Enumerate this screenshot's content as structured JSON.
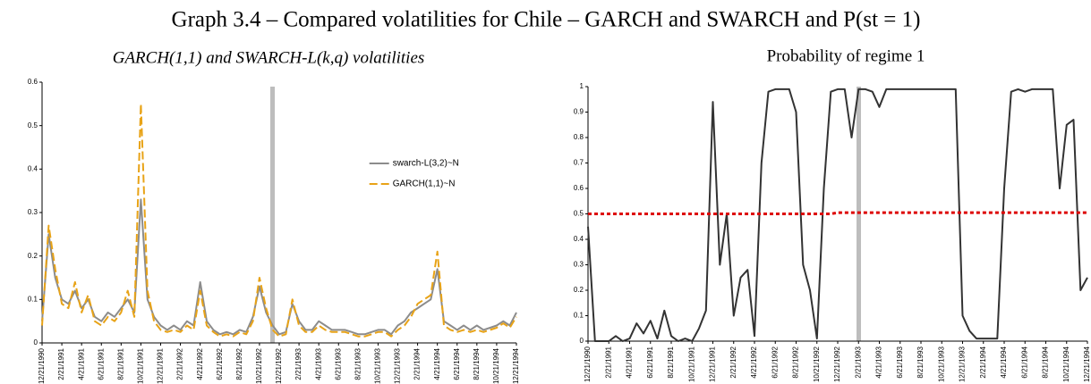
{
  "title": "Graph 3.4 – Compared volatilities for Chile – GARCH and SWARCH and P(st = 1)",
  "chart_data": [
    {
      "type": "line",
      "subtitle": "GARCH(1,1) and SWARCH-L(k,q) volatilities",
      "categories": [
        "12/21/1990",
        null,
        null,
        "2/21/1991",
        null,
        null,
        "4/21/1991",
        null,
        null,
        "6/21/1991",
        null,
        null,
        "8/21/1991",
        null,
        null,
        "10/21/1991",
        null,
        null,
        "12/21/1991",
        null,
        null,
        "2/21/1992",
        null,
        null,
        "4/21/1992",
        null,
        null,
        "6/21/1992",
        null,
        null,
        "8/21/1992",
        null,
        null,
        "10/21/1992",
        null,
        null,
        "12/21/1992",
        null,
        null,
        "2/21/1993",
        null,
        null,
        "4/21/1993",
        null,
        null,
        "6/21/1993",
        null,
        null,
        "8/21/1993",
        null,
        null,
        "10/21/1993",
        null,
        null,
        "12/21/1993",
        null,
        null,
        "2/21/1994",
        null,
        null,
        "4/21/1994",
        null,
        null,
        "6/21/1994",
        null,
        null,
        "8/21/1994",
        null,
        null,
        "10/21/1994",
        null,
        null,
        "12/21/1994"
      ],
      "series": [
        {
          "name": "swarch-L(3,2)~N",
          "color": "#8c8c8c",
          "style": "solid",
          "values": [
            0.05,
            0.25,
            0.15,
            0.1,
            0.09,
            0.12,
            0.08,
            0.1,
            0.06,
            0.05,
            0.07,
            0.06,
            0.08,
            0.1,
            0.07,
            0.33,
            0.1,
            0.06,
            0.04,
            0.03,
            0.04,
            0.03,
            0.05,
            0.04,
            0.14,
            0.05,
            0.03,
            0.02,
            0.025,
            0.02,
            0.03,
            0.025,
            0.06,
            0.13,
            0.07,
            0.04,
            0.02,
            0.025,
            0.09,
            0.05,
            0.03,
            0.03,
            0.05,
            0.04,
            0.03,
            0.03,
            0.03,
            0.025,
            0.02,
            0.02,
            0.025,
            0.03,
            0.03,
            0.02,
            0.04,
            0.05,
            0.07,
            0.08,
            0.09,
            0.1,
            0.17,
            0.05,
            0.04,
            0.03,
            0.04,
            0.03,
            0.04,
            0.03,
            0.035,
            0.04,
            0.05,
            0.04,
            0.07
          ]
        },
        {
          "name": "GARCH(1,1)~N",
          "color": "#e8a317",
          "style": "dashed",
          "values": [
            0.04,
            0.27,
            0.17,
            0.09,
            0.08,
            0.14,
            0.07,
            0.11,
            0.05,
            0.04,
            0.06,
            0.05,
            0.07,
            0.12,
            0.06,
            0.55,
            0.12,
            0.05,
            0.03,
            0.025,
            0.03,
            0.025,
            0.04,
            0.03,
            0.12,
            0.04,
            0.025,
            0.015,
            0.02,
            0.015,
            0.025,
            0.02,
            0.05,
            0.15,
            0.08,
            0.03,
            0.015,
            0.02,
            0.1,
            0.04,
            0.025,
            0.025,
            0.04,
            0.03,
            0.025,
            0.025,
            0.025,
            0.02,
            0.015,
            0.015,
            0.02,
            0.025,
            0.025,
            0.015,
            0.03,
            0.04,
            0.06,
            0.09,
            0.1,
            0.11,
            0.21,
            0.04,
            0.03,
            0.025,
            0.03,
            0.025,
            0.03,
            0.025,
            0.03,
            0.035,
            0.045,
            0.035,
            0.06
          ]
        }
      ],
      "ylim": [
        0,
        0.6
      ],
      "yticks": [
        0,
        0.1,
        0.2,
        0.3,
        0.4,
        0.5,
        0.6
      ],
      "legend": "upper right"
    },
    {
      "type": "line",
      "subtitle": "Probability of regime 1",
      "categories": [
        "12/21/1990",
        null,
        null,
        "2/21/1991",
        null,
        null,
        "4/21/1991",
        null,
        null,
        "6/21/1991",
        null,
        null,
        "8/21/1991",
        null,
        null,
        "10/21/1991",
        null,
        null,
        "12/21/1991",
        null,
        null,
        "2/21/1992",
        null,
        null,
        "4/21/1992",
        null,
        null,
        "6/21/1992",
        null,
        null,
        "8/21/1992",
        null,
        null,
        "10/21/1992",
        null,
        null,
        "12/21/1992",
        null,
        null,
        "2/21/1993",
        null,
        null,
        "4/21/1993",
        null,
        null,
        "6/21/1993",
        null,
        null,
        "8/21/1993",
        null,
        null,
        "10/21/1993",
        null,
        null,
        "12/21/1993",
        null,
        null,
        "2/21/1994",
        null,
        null,
        "4/21/1994",
        null,
        null,
        "6/21/1994",
        null,
        null,
        "8/21/1994",
        null,
        null,
        "10/21/1994",
        null,
        null,
        "12/21/1994"
      ],
      "series": [
        {
          "color": "#333333",
          "style": "solid",
          "values": [
            0.45,
            0,
            0,
            0,
            0.02,
            0,
            0.01,
            0.07,
            0.03,
            0.08,
            0.01,
            0.12,
            0.02,
            0,
            0.01,
            0,
            0.05,
            0.12,
            0.94,
            0.3,
            0.5,
            0.1,
            0.25,
            0.28,
            0.02,
            0.7,
            0.98,
            0.99,
            0.99,
            0.99,
            0.9,
            0.3,
            0.2,
            0.01,
            0.6,
            0.98,
            0.99,
            0.99,
            0.8,
            0.99,
            0.99,
            0.98,
            0.92,
            0.99,
            0.99,
            0.99,
            0.99,
            0.99,
            0.99,
            0.99,
            0.99,
            0.99,
            0.99,
            0.99,
            0.1,
            0.04,
            0.01,
            0.01,
            0.01,
            0.01,
            0.6,
            0.98,
            0.99,
            0.98,
            0.99,
            0.99,
            0.99,
            0.99,
            0.6,
            0.85,
            0.87,
            0.2,
            0.25
          ]
        },
        {
          "color": "#dd0000",
          "style": "dotted",
          "values": [
            0.5,
            0.5,
            0.5,
            0.5,
            0.5,
            0.5,
            0.5,
            0.5,
            0.5,
            0.5,
            0.5,
            0.5,
            0.5,
            0.5,
            0.5,
            0.5,
            0.5,
            0.5,
            0.5,
            0.5,
            0.5,
            0.5,
            0.5,
            0.5,
            0.5,
            0.5,
            0.5,
            0.5,
            0.5,
            0.5,
            0.5,
            0.5,
            0.5,
            0.5,
            0.5,
            0.5,
            0.505,
            0.505,
            0.505,
            0.505,
            0.505,
            0.505,
            0.505,
            0.505,
            0.505,
            0.505,
            0.505,
            0.505,
            0.505,
            0.505,
            0.505,
            0.505,
            0.505,
            0.505,
            0.505,
            0.505,
            0.505,
            0.505,
            0.505,
            0.505,
            0.505,
            0.505,
            0.505,
            0.505,
            0.505,
            0.505,
            0.505,
            0.505,
            0.505,
            0.505,
            0.505,
            0.505,
            0.505
          ]
        }
      ],
      "ylim": [
        0,
        1
      ],
      "yticks": [
        0,
        0.1,
        0.2,
        0.3,
        0.4,
        0.5,
        0.6,
        0.7,
        0.8,
        0.9,
        1
      ]
    }
  ]
}
